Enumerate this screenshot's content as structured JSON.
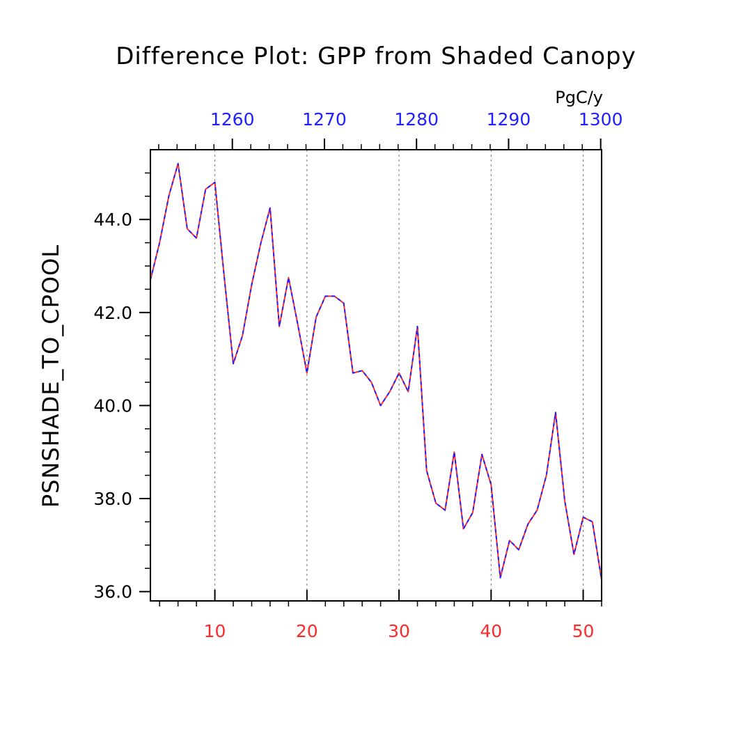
{
  "chart_data": {
    "type": "line",
    "title": "Difference Plot: GPP from Shaded Canopy",
    "ylabel": "PSNSHADE_TO_CPOOL",
    "top_axis_unit": "PgC/y",
    "xlim": [
      3,
      52
    ],
    "ylim": [
      35.8,
      45.5
    ],
    "x_ticks_bottom": [
      10,
      20,
      30,
      40,
      50
    ],
    "x_ticks_top": [
      1260,
      1270,
      1280,
      1290,
      1300
    ],
    "top_axis_color": "#1f1fff",
    "bottom_axis_color": "#ff2a2a",
    "y_ticks": [
      "36.0",
      "38.0",
      "40.0",
      "42.0",
      "44.0"
    ],
    "vertical_grid": true,
    "series": [
      {
        "color": "#ff2a2a",
        "style": "solid",
        "x": [
          3,
          4,
          5,
          6,
          7,
          8,
          9,
          10,
          11,
          12,
          13,
          14,
          15,
          16,
          17,
          18,
          19,
          20,
          21,
          22,
          23,
          24,
          25,
          26,
          27,
          28,
          29,
          30,
          31,
          32,
          33,
          34,
          35,
          36,
          37,
          38,
          39,
          40,
          41,
          42,
          43,
          44,
          45,
          46,
          47,
          48,
          49,
          50,
          51,
          52
        ],
        "values": [
          42.7,
          43.5,
          44.5,
          45.2,
          43.8,
          43.6,
          44.65,
          44.8,
          42.8,
          40.9,
          41.5,
          42.6,
          43.5,
          44.25,
          41.7,
          42.75,
          41.75,
          40.7,
          41.9,
          42.35,
          42.35,
          42.2,
          40.7,
          40.75,
          40.5,
          40.0,
          40.3,
          40.7,
          40.3,
          41.7,
          38.6,
          37.9,
          37.75,
          39.0,
          37.35,
          37.7,
          38.95,
          38.3,
          36.3,
          37.1,
          36.9,
          37.45,
          37.75,
          38.5,
          39.85,
          37.95,
          36.8,
          37.6,
          37.5,
          36.25
        ]
      },
      {
        "color": "#1f1fff",
        "style": "dashed",
        "x": [
          3,
          4,
          5,
          6,
          7,
          8,
          9,
          10,
          11,
          12,
          13,
          14,
          15,
          16,
          17,
          18,
          19,
          20,
          21,
          22,
          23,
          24,
          25,
          26,
          27,
          28,
          29,
          30,
          31,
          32,
          33,
          34,
          35,
          36,
          37,
          38,
          39,
          40,
          41,
          42,
          43,
          44,
          45,
          46,
          47,
          48,
          49,
          50,
          51,
          52
        ],
        "values": [
          42.7,
          43.5,
          44.5,
          45.2,
          43.8,
          43.6,
          44.65,
          44.8,
          42.8,
          40.9,
          41.5,
          42.6,
          43.5,
          44.25,
          41.7,
          42.75,
          41.75,
          40.7,
          41.9,
          42.35,
          42.35,
          42.2,
          40.7,
          40.75,
          40.5,
          40.0,
          40.3,
          40.7,
          40.3,
          41.7,
          38.6,
          37.9,
          37.75,
          39.0,
          37.35,
          37.7,
          38.95,
          38.3,
          36.3,
          37.1,
          36.9,
          37.45,
          37.75,
          38.5,
          39.85,
          37.95,
          36.8,
          37.6,
          37.5,
          36.25
        ]
      }
    ]
  }
}
